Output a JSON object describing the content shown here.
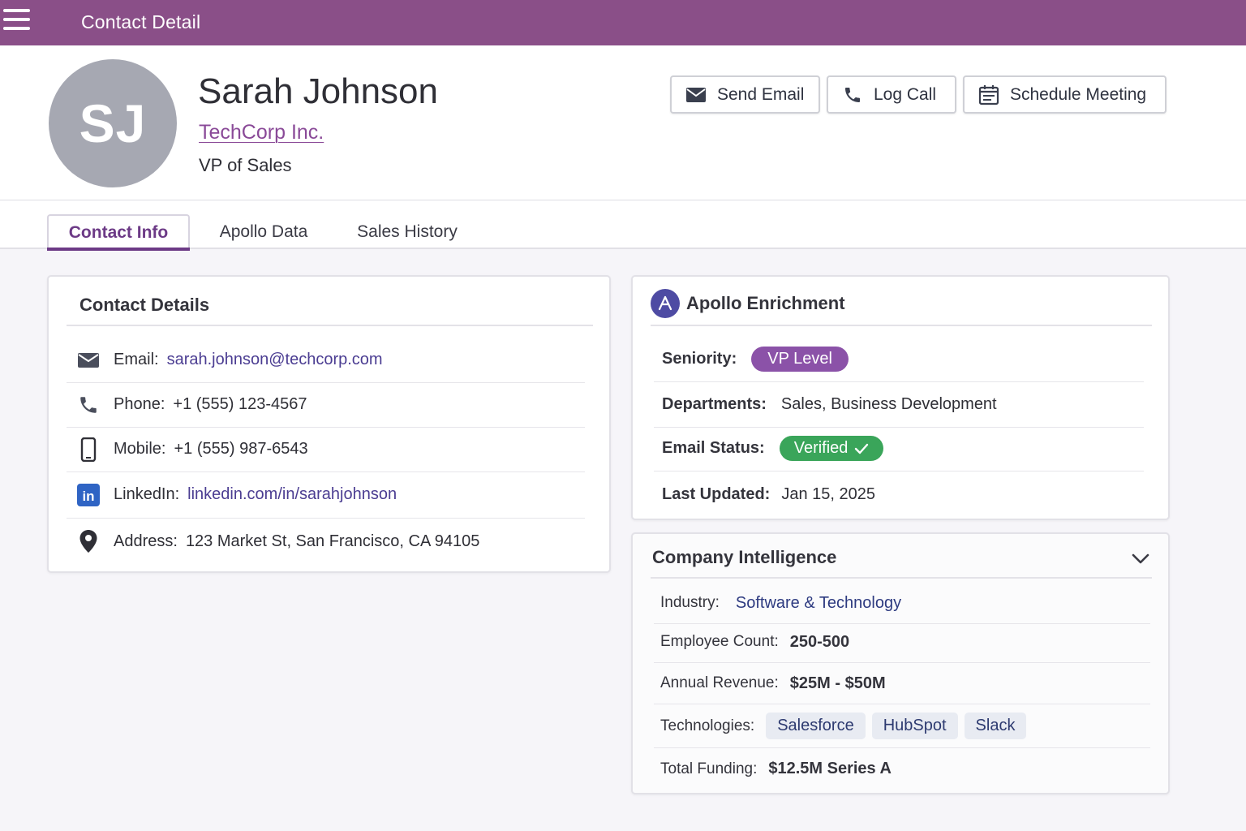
{
  "topbar": {
    "title": "Contact Detail",
    "menu_icon": "hamburger-menu-icon",
    "bg": "#8a4f88"
  },
  "contact": {
    "initials": "SJ",
    "name": "Sarah Johnson",
    "company": "TechCorp Inc.",
    "title": "VP of Sales"
  },
  "actions": {
    "send_email": "Send Email",
    "log_call": "Log Call",
    "schedule_meeting": "Schedule Meeting"
  },
  "tabs": [
    {
      "label": "Contact Info",
      "active": true
    },
    {
      "label": "Apollo Data",
      "active": false
    },
    {
      "label": "Sales History",
      "active": false
    }
  ],
  "contact_details": {
    "title": "Contact Details",
    "rows": [
      {
        "icon": "envelope-icon",
        "label": "Email:",
        "value": "sarah.johnson@techcorp.com"
      },
      {
        "icon": "phone-icon",
        "label": "Phone:",
        "value": "+1 (555) 123-4567"
      },
      {
        "icon": "mobile-icon",
        "label": "Mobile:",
        "value": "+1 (555) 987-6543"
      },
      {
        "icon": "linkedin-icon",
        "label": "LinkedIn:",
        "value": "linkedin.com/in/sarahjohnson"
      },
      {
        "icon": "map-pin-icon",
        "label": "Address:",
        "value": "123 Market St, San Francisco, CA 94105"
      }
    ]
  },
  "apollo": {
    "title": "Apollo Enrichment",
    "seniority_label": "Seniority:",
    "seniority_value": "VP Level",
    "departments_label": "Departments:",
    "departments_value": "Sales, Business Development",
    "email_status_label": "Email Status:",
    "email_status_value": "Verified",
    "last_updated_label": "Last Updated:",
    "last_updated_value": "Jan 15, 2025"
  },
  "company_intel": {
    "title": "Company Intelligence",
    "industry_label": "Industry:",
    "industry_value": "Software & Technology",
    "employees_label": "Employee Count:",
    "employees_value": "250-500",
    "revenue_label": "Annual Revenue:",
    "revenue_value": "$25M - $50M",
    "technologies_label": "Technologies:",
    "technologies": [
      "Salesforce",
      "HubSpot",
      "Slack"
    ],
    "funding_label": "Total Funding:",
    "funding_value": "$12.5M Series A"
  }
}
